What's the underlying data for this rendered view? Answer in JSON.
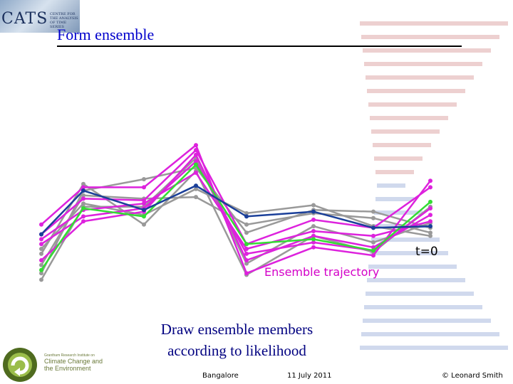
{
  "header": {
    "logo_text": "CATS",
    "logo_subtext": "CENTRE FOR THE ANALYSIS OF TIME SERIES",
    "title": "Form ensemble"
  },
  "annotations": {
    "t0": "t=0",
    "trajectory": "Ensemble trajectory"
  },
  "caption": {
    "line1": "Draw ensemble members",
    "line2": "according to likelihood"
  },
  "footer": {
    "left": "Bangalore",
    "center": "11 July 2011",
    "right": "© Leonard Smith"
  },
  "institute_logo": {
    "line_small": "Grantham Research Institute on",
    "line1": "Climate Change and",
    "line2": "the Environment"
  },
  "colors": {
    "gray": "#999999",
    "magenta": "#dd22dd",
    "green": "#33dd33",
    "blue": "#1a3f99",
    "title": "#0000cc",
    "caption": "#000080",
    "stripe_red": "#e8c4c4",
    "stripe_blue": "#c4d0e8"
  },
  "chart_data": {
    "type": "line",
    "title": "",
    "xlabel": "",
    "ylabel": "",
    "x": [
      0,
      1,
      2,
      3,
      4,
      5,
      6,
      7
    ],
    "ylim": [
      0,
      1
    ],
    "grid": false,
    "series": [
      {
        "color": "gray",
        "values": [
          0.29,
          0.72,
          0.47,
          0.8,
          0.16,
          0.4,
          0.3,
          0.58
        ]
      },
      {
        "color": "gray",
        "values": [
          0.17,
          0.68,
          0.75,
          0.82,
          0.42,
          0.56,
          0.55,
          0.45
        ]
      },
      {
        "color": "gray",
        "values": [
          0.13,
          0.58,
          0.58,
          0.88,
          0.23,
          0.46,
          0.36,
          0.48
        ]
      },
      {
        "color": "gray",
        "values": [
          0.32,
          0.6,
          0.53,
          0.69,
          0.54,
          0.59,
          0.46,
          0.4
        ]
      },
      {
        "color": "gray",
        "values": [
          0.22,
          0.65,
          0.63,
          0.64,
          0.47,
          0.54,
          0.51,
          0.42
        ]
      },
      {
        "color": "magenta",
        "values": [
          0.47,
          0.7,
          0.7,
          0.96,
          0.17,
          0.33,
          0.28,
          0.74
        ]
      },
      {
        "color": "magenta",
        "values": [
          0.25,
          0.49,
          0.55,
          0.9,
          0.25,
          0.4,
          0.33,
          0.53
        ]
      },
      {
        "color": "magenta",
        "values": [
          0.41,
          0.63,
          0.62,
          0.93,
          0.35,
          0.5,
          0.45,
          0.7
        ]
      },
      {
        "color": "magenta",
        "values": [
          0.38,
          0.56,
          0.6,
          0.79,
          0.32,
          0.43,
          0.4,
          0.49
        ]
      },
      {
        "color": "magenta",
        "values": [
          0.35,
          0.52,
          0.57,
          0.86,
          0.29,
          0.36,
          0.31,
          0.57
        ]
      },
      {
        "color": "green",
        "values": [
          0.19,
          0.57,
          0.52,
          0.84,
          0.35,
          0.38,
          0.31,
          0.61
        ]
      },
      {
        "color": "blue",
        "values": [
          0.41,
          0.68,
          0.56,
          0.71,
          0.52,
          0.55,
          0.45,
          0.46
        ]
      }
    ]
  }
}
